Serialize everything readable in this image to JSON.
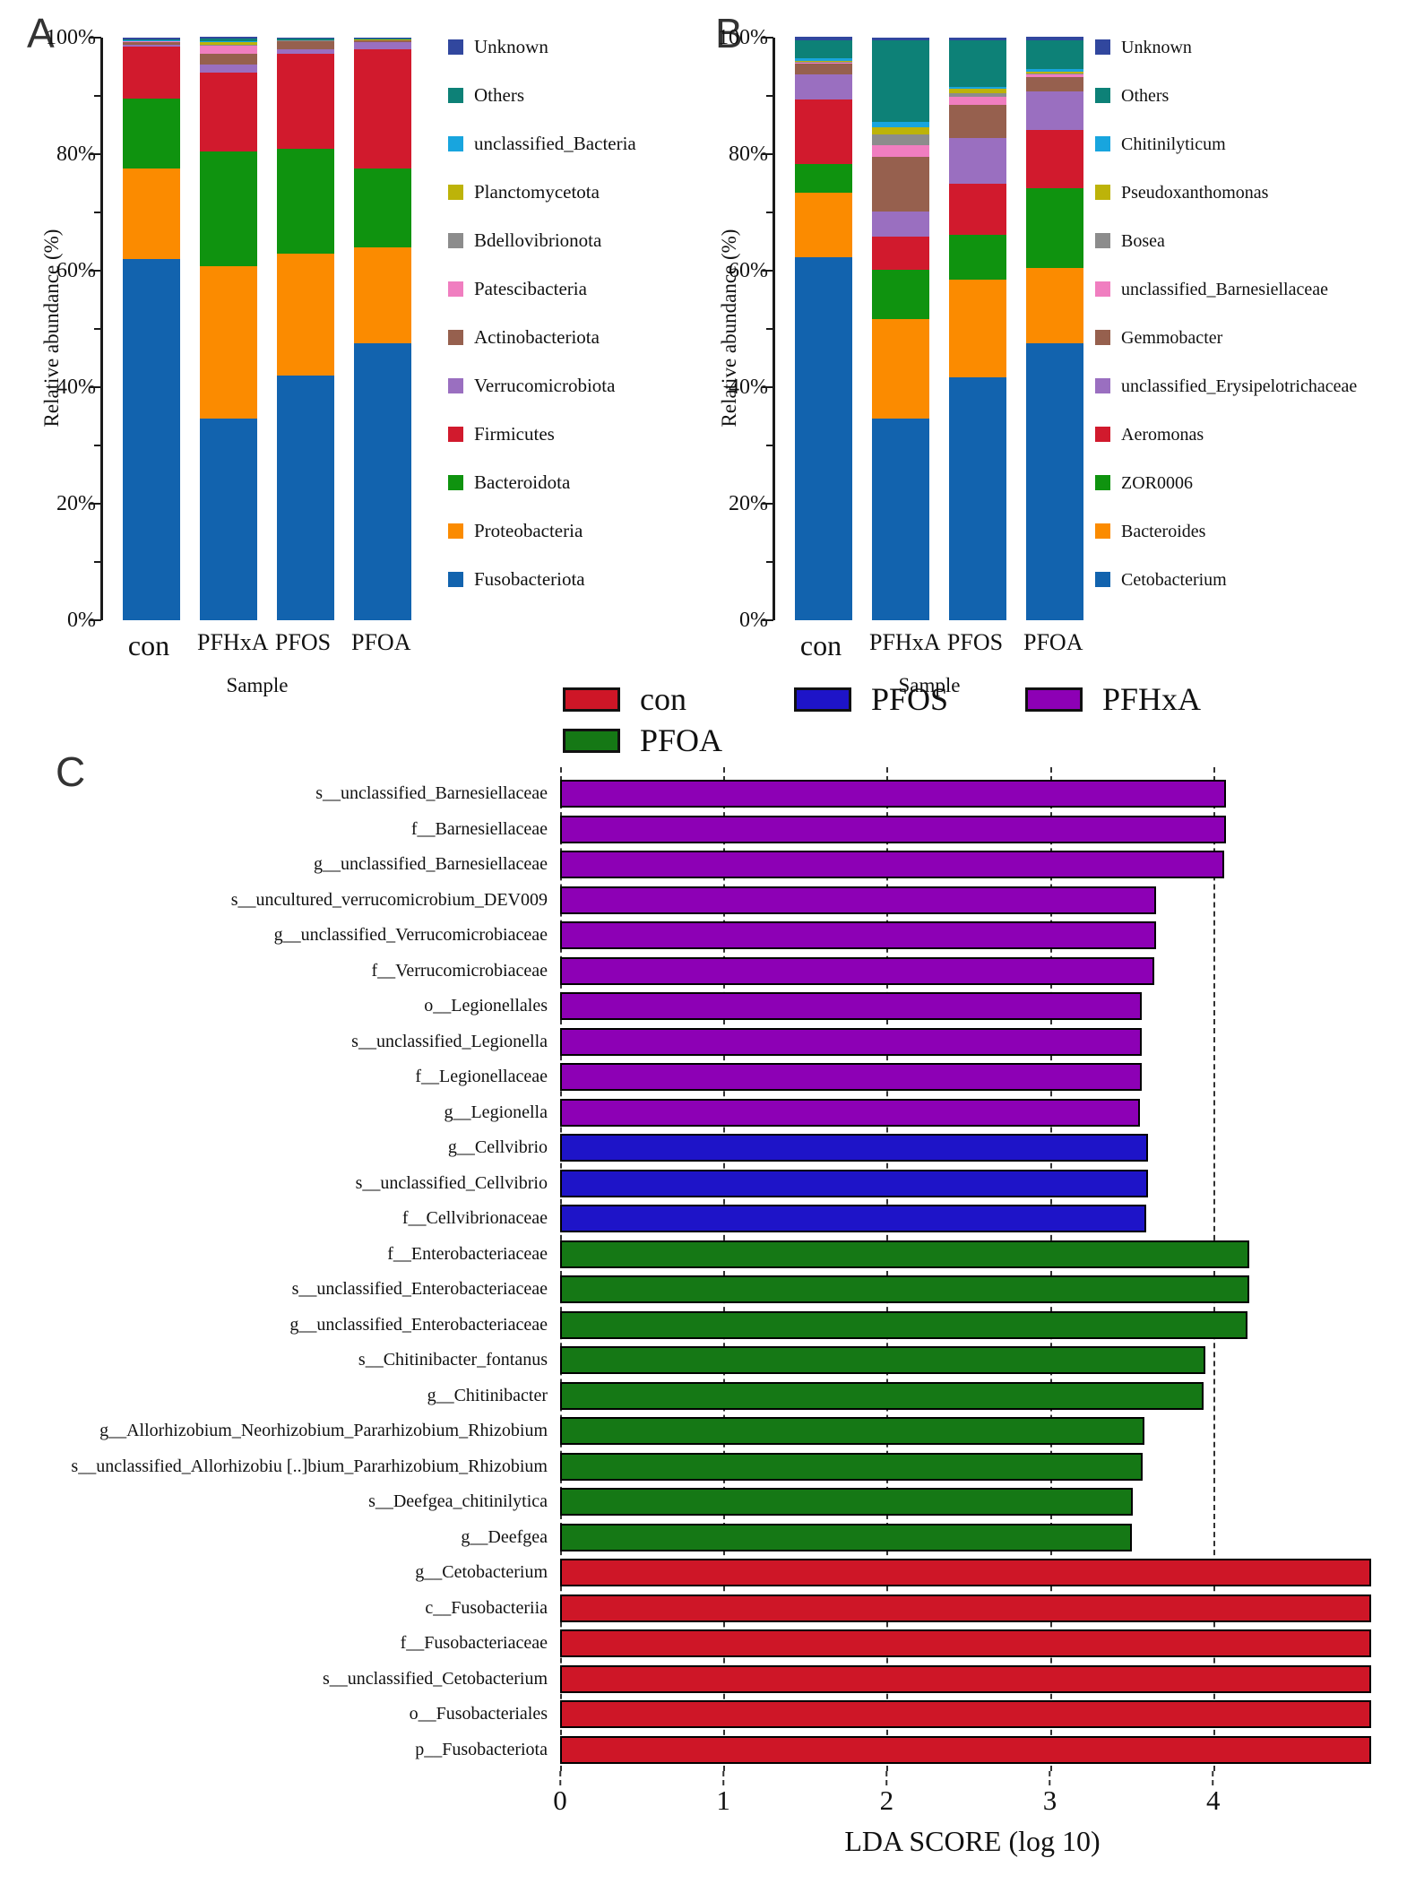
{
  "figure": {
    "panel_a_letter": "A",
    "panel_b_letter": "B",
    "panel_c_letter": "C"
  },
  "chart_data": [
    {
      "id": "panel-a",
      "panel_label": "A",
      "type": "bar",
      "stacked": true,
      "orientation": "vertical",
      "ylabel": "Relative abundance (%)",
      "xlabel": "Sample",
      "ylim": [
        0,
        100
      ],
      "grid": false,
      "legend_position": "right",
      "y_ticks": [
        "0%",
        "20%",
        "40%",
        "60%",
        "80%",
        "100%"
      ],
      "categories": [
        "con",
        "PFHxA",
        "PFOS",
        "PFOA"
      ],
      "series_bottom_to_top": [
        {
          "name": "Fusobacteriota",
          "color": "#1263ae",
          "values": [
            62.0,
            34.6,
            42.0,
            47.5
          ]
        },
        {
          "name": "Proteobacteria",
          "color": "#fb8b00",
          "values": [
            15.6,
            26.1,
            21.0,
            16.5
          ]
        },
        {
          "name": "Bacteroidota",
          "color": "#0f930f",
          "values": [
            12.0,
            19.8,
            18.0,
            13.5
          ]
        },
        {
          "name": "Firmicutes",
          "color": "#d11a2d",
          "values": [
            8.9,
            13.5,
            16.3,
            20.5
          ]
        },
        {
          "name": "Verrucomicrobiota",
          "color": "#9a6fc0",
          "values": [
            0.3,
            1.4,
            0.7,
            1.3
          ]
        },
        {
          "name": "Actinobacteriota",
          "color": "#96604e",
          "values": [
            0.5,
            1.9,
            1.4,
            0.2
          ]
        },
        {
          "name": "Patescibacteria",
          "color": "#f07ec0",
          "values": [
            0.05,
            1.4,
            0.05,
            0.05
          ]
        },
        {
          "name": "Bdellovibrionota",
          "color": "#8c8c8c",
          "values": [
            0.05,
            0.1,
            0.05,
            0.05
          ]
        },
        {
          "name": "Planctomycetota",
          "color": "#bdb309",
          "values": [
            0.05,
            0.5,
            0.05,
            0.05
          ]
        },
        {
          "name": "unclassified_Bacteria",
          "color": "#18a5de",
          "values": [
            0.1,
            0.1,
            0.05,
            0.05
          ]
        },
        {
          "name": "Others",
          "color": "#0d8177",
          "values": [
            0.2,
            0.4,
            0.2,
            0.15
          ]
        },
        {
          "name": "Unknown",
          "color": "#31479e",
          "values": [
            0.25,
            0.3,
            0.2,
            0.2
          ]
        }
      ]
    },
    {
      "id": "panel-b",
      "panel_label": "B",
      "type": "bar",
      "stacked": true,
      "orientation": "vertical",
      "ylabel": "Relative abundance (%)",
      "xlabel": "Sample",
      "ylim": [
        0,
        100
      ],
      "grid": false,
      "legend_position": "right",
      "y_ticks": [
        "0%",
        "20%",
        "40%",
        "60%",
        "80%",
        "100%"
      ],
      "categories": [
        "con",
        "PFHxA",
        "PFOS",
        "PFOA"
      ],
      "series_bottom_to_top": [
        {
          "name": "Cetobacterium",
          "color": "#1263ae",
          "values": [
            62.3,
            34.6,
            41.7,
            47.5
          ]
        },
        {
          "name": "Bacteroides",
          "color": "#fb8b00",
          "values": [
            11.1,
            17.1,
            16.8,
            13.0
          ]
        },
        {
          "name": "ZOR0006",
          "color": "#0f930f",
          "values": [
            4.9,
            8.4,
            7.7,
            13.6
          ]
        },
        {
          "name": "Aeromonas",
          "color": "#d11a2d",
          "values": [
            11.1,
            5.7,
            8.8,
            10.1
          ]
        },
        {
          "name": "unclassified_Erysipelotrichaceae",
          "color": "#9a6fc0",
          "values": [
            4.3,
            4.3,
            7.7,
            6.5
          ]
        },
        {
          "name": "Gemmobacter",
          "color": "#96604e",
          "values": [
            1.8,
            9.4,
            5.8,
            2.6
          ]
        },
        {
          "name": "unclassified_Barnesiellaceae",
          "color": "#f07ec0",
          "values": [
            0.15,
            2.1,
            1.4,
            0.4
          ]
        },
        {
          "name": "Bosea",
          "color": "#8c8c8c",
          "values": [
            0.15,
            1.8,
            0.6,
            0.1
          ]
        },
        {
          "name": "Pseudoxanthomonas",
          "color": "#bdb309",
          "values": [
            0.2,
            1.3,
            0.7,
            0.3
          ]
        },
        {
          "name": "Chitinilyticum",
          "color": "#18a5de",
          "values": [
            0.5,
            0.8,
            0.3,
            0.5
          ]
        },
        {
          "name": "Others",
          "color": "#0d8177",
          "values": [
            3.1,
            14.0,
            8.0,
            5.0
          ]
        },
        {
          "name": "Unknown",
          "color": "#31479e",
          "values": [
            0.5,
            0.5,
            0.5,
            0.5
          ]
        }
      ]
    },
    {
      "id": "panel-c",
      "panel_label": "C",
      "type": "bar",
      "orientation": "horizontal",
      "xlabel": "LDA SCORE (log 10)",
      "xlim": [
        0,
        5.05
      ],
      "x_ticks": [
        0,
        1,
        2,
        3,
        4
      ],
      "grid": "dashed-vertical",
      "legend_position": "top",
      "groups": [
        {
          "name": "con",
          "color": "#ce1627"
        },
        {
          "name": "PFOS",
          "color": "#1e14c8"
        },
        {
          "name": "PFHxA",
          "color": "#8d00b5"
        },
        {
          "name": "PFOA",
          "color": "#157815"
        }
      ],
      "bars": [
        {
          "label": "s__unclassified_Barnesiellaceae",
          "group": "PFHxA",
          "value": 4.08
        },
        {
          "label": "f__Barnesiellaceae",
          "group": "PFHxA",
          "value": 4.08
        },
        {
          "label": "g__unclassified_Barnesiellaceae",
          "group": "PFHxA",
          "value": 4.07
        },
        {
          "label": "s__uncultured_verrucomicrobium_DEV009",
          "group": "PFHxA",
          "value": 3.65
        },
        {
          "label": "g__unclassified_Verrucomicrobiaceae",
          "group": "PFHxA",
          "value": 3.65
        },
        {
          "label": "f__Verrucomicrobiaceae",
          "group": "PFHxA",
          "value": 3.64
        },
        {
          "label": "o__Legionellales",
          "group": "PFHxA",
          "value": 3.56
        },
        {
          "label": "s__unclassified_Legionella",
          "group": "PFHxA",
          "value": 3.56
        },
        {
          "label": "f__Legionellaceae",
          "group": "PFHxA",
          "value": 3.56
        },
        {
          "label": "g__Legionella",
          "group": "PFHxA",
          "value": 3.55
        },
        {
          "label": "g__Cellvibrio",
          "group": "PFOS",
          "value": 3.6
        },
        {
          "label": "s__unclassified_Cellvibrio",
          "group": "PFOS",
          "value": 3.6
        },
        {
          "label": "f__Cellvibrionaceae",
          "group": "PFOS",
          "value": 3.59
        },
        {
          "label": "f__Enterobacteriaceae",
          "group": "PFOA",
          "value": 4.22
        },
        {
          "label": "s__unclassified_Enterobacteriaceae",
          "group": "PFOA",
          "value": 4.22
        },
        {
          "label": "g__unclassified_Enterobacteriaceae",
          "group": "PFOA",
          "value": 4.21
        },
        {
          "label": "s__Chitinibacter_fontanus",
          "group": "PFOA",
          "value": 3.95
        },
        {
          "label": "g__Chitinibacter",
          "group": "PFOA",
          "value": 3.94
        },
        {
          "label": "g__Allorhizobium_Neorhizobium_Pararhizobium_Rhizobium",
          "group": "PFOA",
          "value": 3.58
        },
        {
          "label": "s__unclassified_Allorhizobiu [..]bium_Pararhizobium_Rhizobium",
          "group": "PFOA",
          "value": 3.57
        },
        {
          "label": "s__Deefgea_chitinilytica",
          "group": "PFOA",
          "value": 3.51
        },
        {
          "label": "g__Deefgea",
          "group": "PFOA",
          "value": 3.5
        },
        {
          "label": "g__Cetobacterium",
          "group": "con",
          "value": 4.97
        },
        {
          "label": "c__Fusobacteriia",
          "group": "con",
          "value": 4.97
        },
        {
          "label": "f__Fusobacteriaceae",
          "group": "con",
          "value": 4.97
        },
        {
          "label": "s__unclassified_Cetobacterium",
          "group": "con",
          "value": 4.97
        },
        {
          "label": "o__Fusobacteriales",
          "group": "con",
          "value": 4.97
        },
        {
          "label": "p__Fusobacteriota",
          "group": "con",
          "value": 4.97
        }
      ]
    }
  ]
}
